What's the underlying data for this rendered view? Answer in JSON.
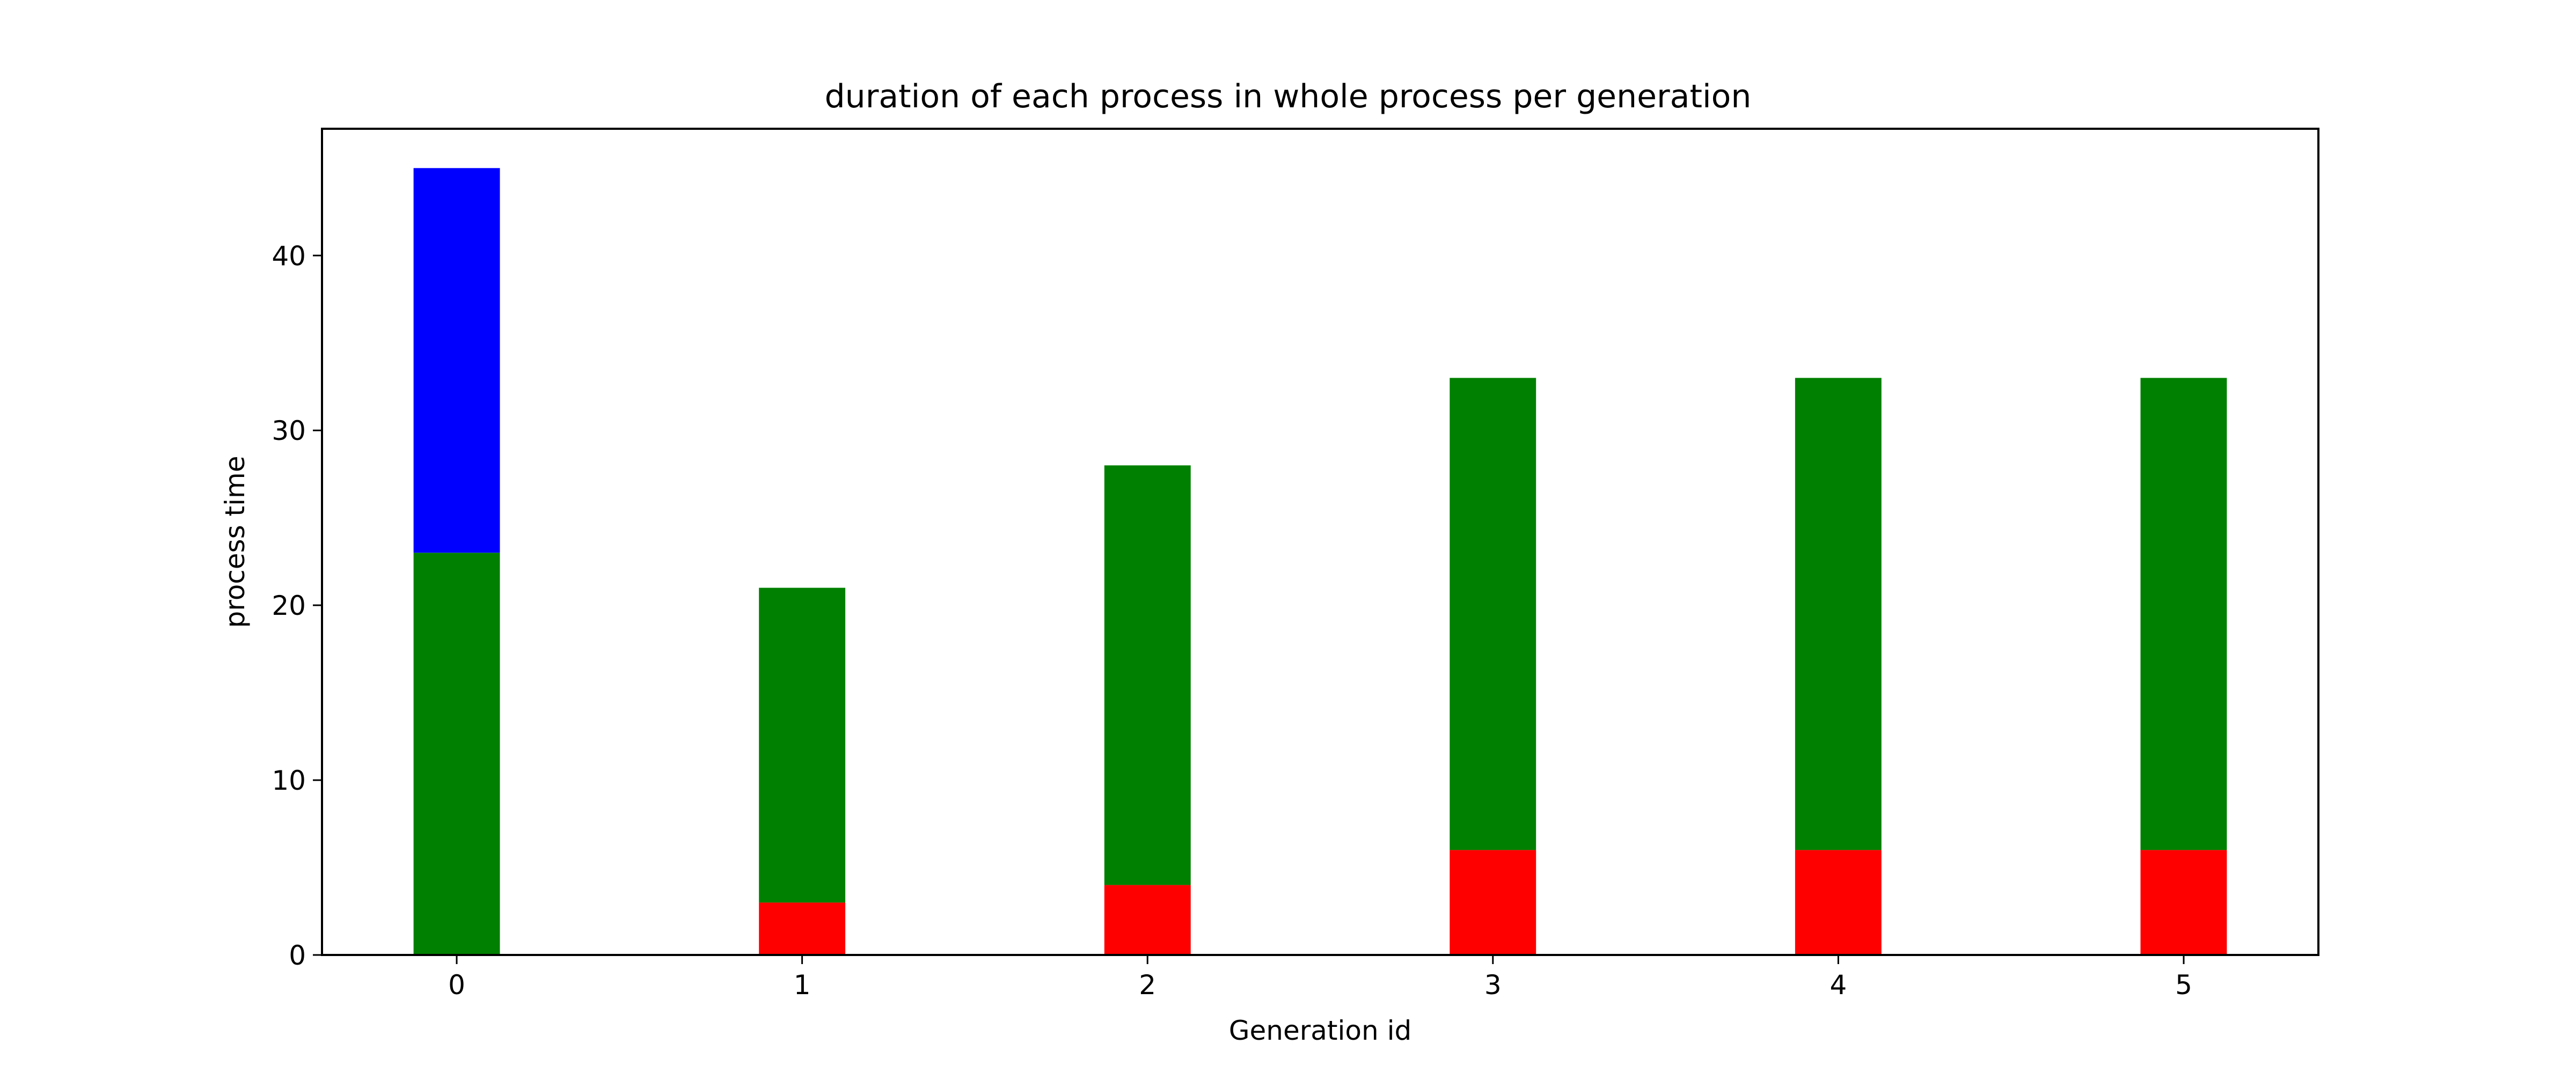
{
  "chart_data": {
    "type": "bar",
    "stacked": true,
    "title": "duration of each process in whole process per generation",
    "xlabel": "Generation id",
    "ylabel": "process time",
    "categories": [
      "0",
      "1",
      "2",
      "3",
      "4",
      "5"
    ],
    "series": [
      {
        "color": "#ff0000",
        "values": [
          0,
          3,
          4,
          6,
          6,
          6
        ]
      },
      {
        "color": "#008000",
        "values": [
          23,
          18,
          24,
          27,
          27,
          27
        ]
      },
      {
        "color": "#0000ff",
        "values": [
          22,
          0,
          0,
          0,
          0,
          0
        ]
      }
    ],
    "xlim": [
      -0.39,
      5.39
    ],
    "ylim": [
      0,
      47.25
    ],
    "yticks": [
      0,
      10,
      20,
      30,
      40
    ],
    "bar_width": 0.25,
    "grid": false,
    "legend": "none"
  }
}
